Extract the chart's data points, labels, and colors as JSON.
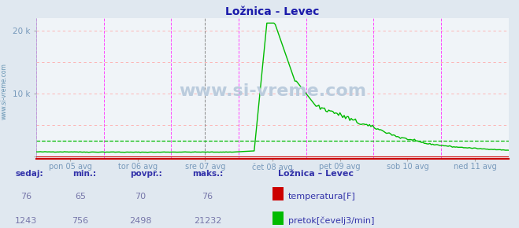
{
  "title": "Ložnica - Levec",
  "title_color": "#1a1aaa",
  "bg_color": "#e0e8f0",
  "plot_bg_color": "#f0f4f8",
  "grid_color_h": "#ffaaaa",
  "grid_color_v": "#ff44ff",
  "watermark": "www.si-vreme.com",
  "watermark_color": "#bbccdd",
  "watermark_fontsize": 16,
  "xlim": [
    0,
    336
  ],
  "ylim_min": -300,
  "ylim_max": 22000,
  "ytick_vals": [
    0,
    10000,
    20000
  ],
  "ytick_labels": [
    "",
    "10 k",
    "20 k"
  ],
  "day_labels": [
    "pon 05 avg",
    "tor 06 avg",
    "sre 07 avg",
    "čet 08 avg",
    "pet 09 avg",
    "sob 10 avg",
    "ned 11 avg"
  ],
  "day_positions": [
    24,
    72,
    120,
    168,
    216,
    264,
    312
  ],
  "vline_magenta": [
    0,
    48,
    96,
    144,
    192,
    240,
    288,
    336
  ],
  "vline_dark": [
    120
  ],
  "temp_color": "#cc0000",
  "flow_color": "#00bb00",
  "avg_line_color": "#00bb00",
  "avg_line_value": 2498,
  "bottom_bg": "#e0e8f0",
  "label_color": "#3333aa",
  "value_color": "#7777aa",
  "legend_title": "Ložnica – Levec",
  "headers": [
    "sedaj:",
    "min.:",
    "povpr.:",
    "maks.:"
  ],
  "temp_value": "76",
  "temp_min": "65",
  "temp_avg": "70",
  "temp_max": "76",
  "flow_value": "1243",
  "flow_min": "756",
  "flow_avg": "2498",
  "flow_max": "21232",
  "xaxis_line_color": "#cc0000",
  "left_label_color": "#5588aa",
  "tick_label_color": "#7799bb"
}
